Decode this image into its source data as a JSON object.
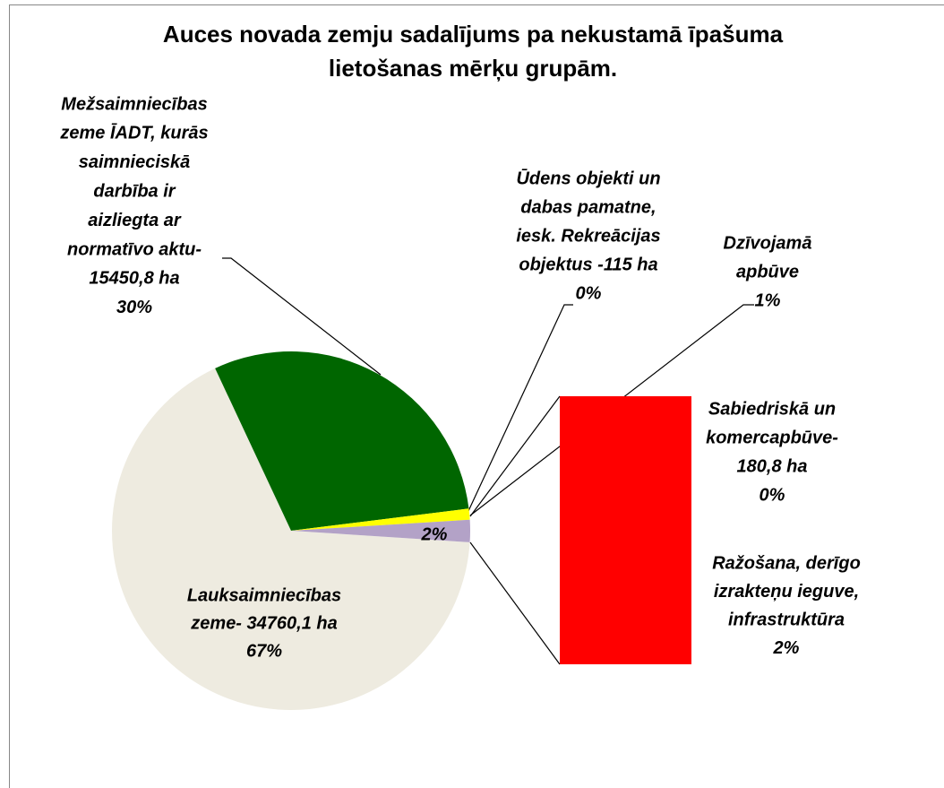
{
  "chart_data": {
    "type": "pie_of_bar",
    "title": [
      "Auces novada zemju sadalījums pa nekustamā īpašuma",
      "lietošanas mērķu grupām."
    ],
    "slices": [
      {
        "label_lines": [
          "Lauksaimniecības",
          "zeme- 34760,1 ha"
        ],
        "value": 67,
        "value_label": "67%",
        "color": "#eeebe0"
      },
      {
        "label_lines": [
          "Mežsaimniecības",
          "zeme ĪADT, kurās",
          "saimnieciskā",
          "darbība ir",
          "aizliegta ar",
          "normatīvo aktu-",
          "15450,8 ha"
        ],
        "value": 30,
        "value_label": "30%",
        "color": "#006600"
      },
      {
        "label_lines": [
          "Ūdens objekti un",
          "dabas pamatne,",
          "iesk. Rekreācijas",
          "objektus -115 ha"
        ],
        "value": 0,
        "value_label": "0%",
        "color": "#33cccc"
      },
      {
        "label_lines": [
          "Dzīvojamā",
          "apbūve"
        ],
        "value": 1,
        "value_label": "1%",
        "color": "#ffff00"
      },
      {
        "value": 2,
        "value_label": "2%",
        "color": "#b3a2c7"
      }
    ],
    "bar": [
      {
        "label_lines": [
          "Ražošana, derīgo",
          "izrakteņu ieguve,",
          "infrastruktūra"
        ],
        "value": 2,
        "value_label": "2%",
        "color": "#ff0000"
      },
      {
        "label_lines": [
          "Sabiedriskā un",
          "komercapbūve-",
          "180,8 ha"
        ],
        "value": 0,
        "value_label": "0%",
        "color": "#974706"
      }
    ]
  }
}
